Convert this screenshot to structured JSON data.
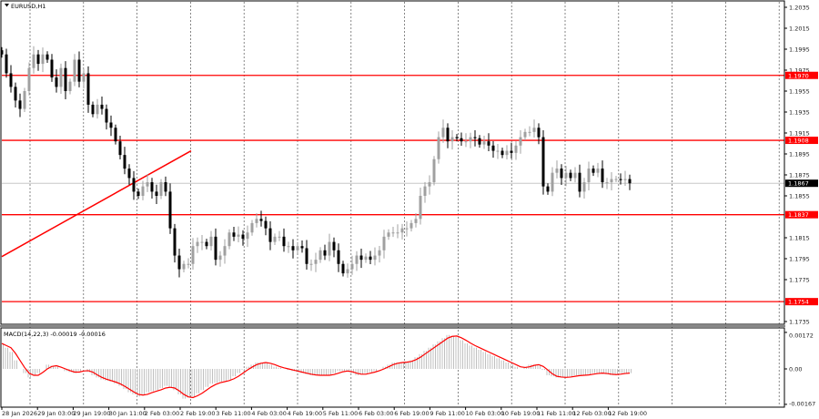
{
  "window": {
    "title": "EURUSD,H1"
  },
  "chart_data": [
    {
      "type": "candlestick",
      "symbol": "EURUSD",
      "timeframe": "H1",
      "title": "EURUSD,H1",
      "colors": {
        "bull": "#a0a0a0",
        "bear": "#000000",
        "levels": "#ff0000",
        "current_price": "#000000"
      },
      "ylim": [
        1.1728,
        1.2041
      ],
      "y_ticks": [
        "1.2035",
        "1.2015",
        "1.1995",
        "1.1975",
        "1.1955",
        "1.1935",
        "1.1915",
        "1.1895",
        "1.1875",
        "1.1855",
        "1.1815",
        "1.1795",
        "1.1775",
        "1.1735"
      ],
      "x_ticks": [
        "28 Jan 2026",
        "29 Jan 03:00",
        "29 Jan 19:00",
        "30 Jan 11:00",
        "2 Feb 03:00",
        "2 Feb 19:00",
        "3 Feb 11:00",
        "4 Feb 03:00",
        "4 Feb 19:00",
        "5 Feb 11:00",
        "6 Feb 03:00",
        "6 Feb 19:00",
        "9 Feb 11:00",
        "10 Feb 03:00",
        "10 Feb 19:00",
        "11 Feb 11:00",
        "12 Feb 03:00",
        "12 Feb 19:00"
      ],
      "grid": "vertical dashed",
      "levels": [
        {
          "price": 1.197,
          "label": "1.1970"
        },
        {
          "price": 1.1908,
          "label": "1.1908"
        },
        {
          "price": 1.1837,
          "label": "1.1837"
        },
        {
          "price": 1.1754,
          "label": "1.1754"
        }
      ],
      "current_price": {
        "price": 1.1867,
        "label": "1.1867"
      },
      "trendline": {
        "from": {
          "time": "28 Jan 2026",
          "price": 1.1797
        },
        "to": {
          "time": "2 Feb 19:00",
          "price": 1.1898
        }
      },
      "closes": [
        1.199,
        1.1972,
        1.1959,
        1.1946,
        1.1938,
        1.1955,
        1.1977,
        1.199,
        1.1981,
        1.199,
        1.1985,
        1.1968,
        1.1959,
        1.1977,
        1.1955,
        1.1964,
        1.1985,
        1.1964,
        1.1972,
        1.1942,
        1.1933,
        1.1942,
        1.1938,
        1.1925,
        1.192,
        1.1907,
        1.1894,
        1.1881,
        1.1872,
        1.1859,
        1.1855,
        1.1864,
        1.1868,
        1.1859,
        1.1855,
        1.1868,
        1.1859,
        1.1824,
        1.1798,
        1.1785,
        1.179,
        1.179,
        1.1807,
        1.1811,
        1.1811,
        1.1807,
        1.1816,
        1.1794,
        1.1798,
        1.1807,
        1.182,
        1.1816,
        1.1818,
        1.1814,
        1.182,
        1.1829,
        1.1833,
        1.1831,
        1.1824,
        1.1811,
        1.1816,
        1.1816,
        1.1807,
        1.1807,
        1.1803,
        1.1807,
        1.1805,
        1.179,
        1.179,
        1.1794,
        1.1803,
        1.1798,
        1.1811,
        1.1803,
        1.179,
        1.1781,
        1.1785,
        1.179,
        1.1798,
        1.1794,
        1.1797,
        1.1794,
        1.1798,
        1.1803,
        1.1816,
        1.182,
        1.182,
        1.182,
        1.1824,
        1.1824,
        1.1829,
        1.1833,
        1.1855,
        1.1864,
        1.1868,
        1.189,
        1.1911,
        1.192,
        1.1907,
        1.1911,
        1.191,
        1.1907,
        1.1907,
        1.1911,
        1.191,
        1.1904,
        1.1907,
        1.1903,
        1.1898,
        1.1898,
        1.1894,
        1.1898,
        1.1896,
        1.1903,
        1.1911,
        1.1916,
        1.1916,
        1.192,
        1.1911,
        1.1864,
        1.1859,
        1.1877,
        1.1881,
        1.1872,
        1.1877,
        1.1872,
        1.1877,
        1.1859,
        1.1868,
        1.1881,
        1.1877,
        1.1881,
        1.1868,
        1.1868,
        1.1871,
        1.1871,
        1.187,
        1.1871,
        1.1867
      ]
    },
    {
      "type": "bar",
      "indicator": "MACD",
      "label": "MACD(14,22,3) -0.00019 -0.00016",
      "y_ticks": [
        "0.00172",
        "0.00",
        "-0.00167"
      ],
      "ylim": [
        -0.00167,
        0.00172
      ],
      "colors": {
        "histogram": "#c0c0c0",
        "signal": "#ff0000"
      },
      "macd": [
        0.0012,
        0.0008,
        0.0,
        -0.0004,
        -0.0002,
        0.0002,
        0.0001,
        -0.0001,
        -0.0002,
        0.0,
        -0.0003,
        -0.0005,
        -0.0006,
        -0.0008,
        -0.0011,
        -0.0013,
        -0.0011,
        -0.001,
        -0.0008,
        -0.001,
        -0.0014,
        -0.0013,
        -0.001,
        -0.0007,
        -0.0006,
        -0.0005,
        -0.0002,
        0.0001,
        0.0003,
        0.0003,
        0.0001,
        0.0,
        -0.0001,
        -0.0002,
        -0.0003,
        -0.0003,
        -0.0003,
        -0.0001,
        -0.0001,
        -0.0003,
        -0.0002,
        -0.0001,
        0.0001,
        0.0003,
        0.0003,
        0.0004,
        0.0007,
        0.001,
        0.0013,
        0.0016,
        0.0015,
        0.0012,
        0.001,
        0.0008,
        0.0006,
        0.0004,
        0.0002,
        0.0,
        0.0002,
        0.0002,
        -0.0003,
        -0.0004,
        -0.0004,
        -0.0003,
        -0.0003,
        -0.0002,
        -0.0002,
        -0.0003,
        -0.0002,
        -0.0002
      ]
    }
  ]
}
